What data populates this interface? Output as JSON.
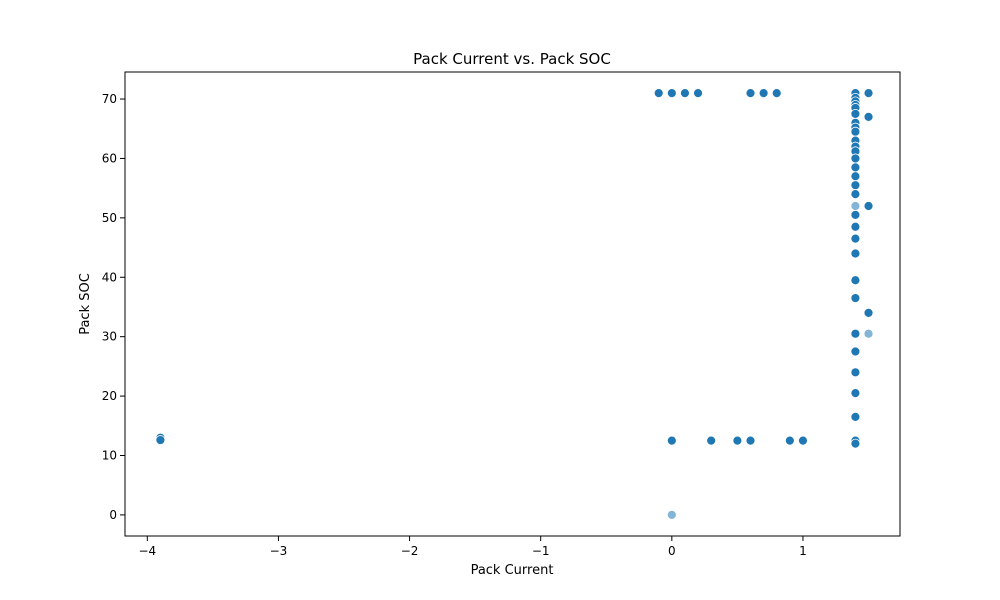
{
  "chart_data": {
    "type": "scatter",
    "title": "Pack Current vs. Pack SOC",
    "xlabel": "Pack Current",
    "ylabel": "Pack SOC",
    "xlim": [
      -4.17,
      1.74
    ],
    "ylim": [
      -3.55,
      74.55
    ],
    "xticks": [
      -4,
      -3,
      -2,
      -1,
      0,
      1
    ],
    "xtick_labels": [
      "−4",
      "−3",
      "−2",
      "−1",
      "0",
      "1"
    ],
    "yticks": [
      0,
      10,
      20,
      30,
      40,
      50,
      60,
      70
    ],
    "ytick_labels": [
      "0",
      "10",
      "20",
      "30",
      "40",
      "50",
      "60",
      "70"
    ],
    "grid": false,
    "legend": "none",
    "marker_color": "#1f77b4",
    "series": [
      {
        "points": [
          [
            -3.9,
            13.0
          ],
          [
            -3.9,
            12.6
          ],
          [
            -0.1,
            71.0
          ],
          [
            0.0,
            71.0
          ],
          [
            0.1,
            71.0
          ],
          [
            0.2,
            71.0
          ],
          [
            0.6,
            71.0
          ],
          [
            0.7,
            71.0
          ],
          [
            0.8,
            71.0
          ],
          [
            1.4,
            71.0
          ],
          [
            1.4,
            70.2
          ],
          [
            1.4,
            69.6
          ],
          [
            1.4,
            69.0
          ],
          [
            1.4,
            68.5
          ],
          [
            1.4,
            67.5
          ],
          [
            1.4,
            66.0
          ],
          [
            1.4,
            65.2
          ],
          [
            1.4,
            64.5
          ],
          [
            1.4,
            63.0
          ],
          [
            1.4,
            62.0
          ],
          [
            1.4,
            61.2
          ],
          [
            1.4,
            60.0
          ],
          [
            1.4,
            58.5
          ],
          [
            1.4,
            57.0
          ],
          [
            1.4,
            55.5
          ],
          [
            1.4,
            54.0
          ],
          [
            1.4,
            50.5
          ],
          [
            1.4,
            48.5
          ],
          [
            1.4,
            46.5
          ],
          [
            1.4,
            44.0
          ],
          [
            1.4,
            39.5
          ],
          [
            1.4,
            36.5
          ],
          [
            1.4,
            30.5
          ],
          [
            1.4,
            27.5
          ],
          [
            1.4,
            24.0
          ],
          [
            1.4,
            20.5
          ],
          [
            1.4,
            16.5
          ],
          [
            1.4,
            12.5
          ],
          [
            1.4,
            12.0
          ],
          [
            1.5,
            71.0
          ],
          [
            1.5,
            67.0
          ],
          [
            1.5,
            52.0
          ],
          [
            1.5,
            34.0
          ],
          [
            0.0,
            12.5
          ],
          [
            0.3,
            12.5
          ],
          [
            0.5,
            12.5
          ],
          [
            0.6,
            12.5
          ],
          [
            0.9,
            12.5
          ],
          [
            1.0,
            12.5
          ]
        ],
        "alpha": 1.0
      },
      {
        "points": [
          [
            1.4,
            52.0
          ],
          [
            1.5,
            30.5
          ],
          [
            0.0,
            0.0
          ]
        ],
        "alpha": 0.55
      }
    ]
  }
}
